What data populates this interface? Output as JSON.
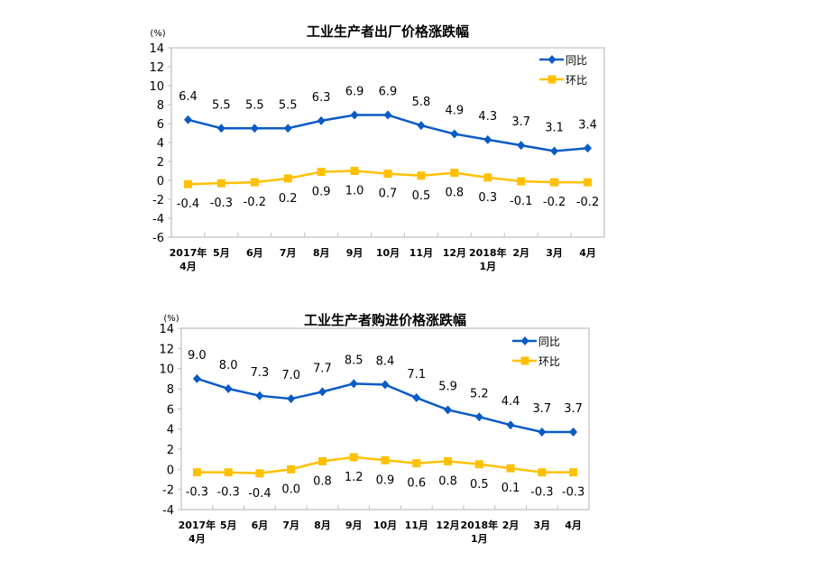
{
  "colors": {
    "yoy": "#0a5bc4",
    "mom": "#ffc000",
    "axis": "#bfbfbf"
  },
  "chart_data": [
    {
      "type": "line",
      "title": "工业生产者出厂价格涨跌幅",
      "ylabel": "(%)",
      "ylim": [
        -6,
        14
      ],
      "yticks": [
        -6,
        -4,
        -2,
        0,
        2,
        4,
        6,
        8,
        10,
        12,
        14
      ],
      "categories": [
        [
          "2017年",
          "4月"
        ],
        [
          "5月"
        ],
        [
          "6月"
        ],
        [
          "7月"
        ],
        [
          "8月"
        ],
        [
          "9月"
        ],
        [
          "10月"
        ],
        [
          "11月"
        ],
        [
          "12月"
        ],
        [
          "2018年",
          "1月"
        ],
        [
          "2月"
        ],
        [
          "3月"
        ],
        [
          "4月"
        ]
      ],
      "legend_position": "top-right",
      "series": [
        {
          "name": "同比",
          "marker": "diamond",
          "values": [
            6.4,
            5.5,
            5.5,
            5.5,
            6.3,
            6.9,
            6.9,
            5.8,
            4.9,
            4.3,
            3.7,
            3.1,
            3.4
          ],
          "labels": [
            "6.4",
            "5.5",
            "5.5",
            "5.5",
            "6.3",
            "6.9",
            "6.9",
            "5.8",
            "4.9",
            "4.3",
            "3.7",
            "3.1",
            "3.4"
          ]
        },
        {
          "name": "环比",
          "marker": "square",
          "values": [
            -0.4,
            -0.3,
            -0.2,
            0.2,
            0.9,
            1.0,
            0.7,
            0.5,
            0.8,
            0.3,
            -0.1,
            -0.2,
            -0.2
          ],
          "labels": [
            "-0.4",
            "-0.3",
            "-0.2",
            "0.2",
            "0.9",
            "1.0",
            "0.7",
            "0.5",
            "0.8",
            "0.3",
            "-0.1",
            "-0.2",
            "-0.2"
          ]
        }
      ]
    },
    {
      "type": "line",
      "title": "工业生产者购进价格涨跌幅",
      "ylabel": "(%)",
      "ylim": [
        -4,
        14
      ],
      "yticks": [
        -4,
        -2,
        0,
        2,
        4,
        6,
        8,
        10,
        12,
        14
      ],
      "categories": [
        [
          "2017年",
          "4月"
        ],
        [
          "5月"
        ],
        [
          "6月"
        ],
        [
          "7月"
        ],
        [
          "8月"
        ],
        [
          "9月"
        ],
        [
          "10月"
        ],
        [
          "11月"
        ],
        [
          "12月"
        ],
        [
          "2018年",
          "1月"
        ],
        [
          "2月"
        ],
        [
          "3月"
        ],
        [
          "4月"
        ]
      ],
      "legend_position": "top-right",
      "series": [
        {
          "name": "同比",
          "marker": "diamond",
          "values": [
            9.0,
            8.0,
            7.3,
            7.0,
            7.7,
            8.5,
            8.4,
            7.1,
            5.9,
            5.2,
            4.4,
            3.7,
            3.7
          ],
          "labels": [
            "9.0",
            "8.0",
            "7.3",
            "7.0",
            "7.7",
            "8.5",
            "8.4",
            "7.1",
            "5.9",
            "5.2",
            "4.4",
            "3.7",
            "3.7"
          ]
        },
        {
          "name": "环比",
          "marker": "square",
          "values": [
            -0.3,
            -0.3,
            -0.4,
            0.0,
            0.8,
            1.2,
            0.9,
            0.6,
            0.8,
            0.5,
            0.1,
            -0.3,
            -0.3
          ],
          "labels": [
            "-0.3",
            "-0.3",
            "-0.4",
            "0.0",
            "0.8",
            "1.2",
            "0.9",
            "0.6",
            "0.8",
            "0.5",
            "0.1",
            "-0.3",
            "-0.3"
          ]
        }
      ]
    }
  ]
}
